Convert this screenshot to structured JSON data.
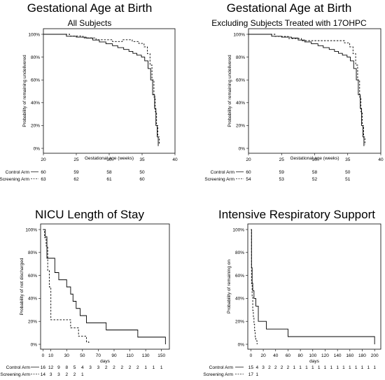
{
  "chart_data": [
    {
      "type": "line",
      "title": "Gestational Age at Birth",
      "subtitle": "All Subjects",
      "xlabel": "Gestational age (weeks)",
      "ylabel": "Probability of remaining undelivered",
      "xlim": [
        20,
        40
      ],
      "ylim": [
        0,
        1
      ],
      "x_ticks": [
        "20",
        "25",
        "30",
        "35",
        "40"
      ],
      "y_ticks": [
        "0%",
        "20%",
        "40%",
        "60%",
        "80%",
        "100%"
      ],
      "series": [
        {
          "name": "Control Arm",
          "style": "solid",
          "x": [
            20.0,
            23.5,
            25.0,
            26.5,
            27.5,
            28.5,
            29.5,
            30.5,
            31.3,
            32.2,
            33.0,
            33.6,
            34.2,
            34.9,
            35.4,
            35.9,
            36.3,
            36.6,
            36.9,
            37.1,
            37.3,
            37.45
          ],
          "y": [
            1.0,
            0.983,
            0.975,
            0.967,
            0.95,
            0.933,
            0.917,
            0.9,
            0.883,
            0.867,
            0.85,
            0.833,
            0.817,
            0.8,
            0.767,
            0.7,
            0.6,
            0.47,
            0.35,
            0.2,
            0.1,
            0.02
          ]
        },
        {
          "name": "Screening Arm",
          "style": "dashed",
          "x": [
            20.0,
            24.0,
            26.0,
            28.0,
            30.5,
            32.0,
            33.5,
            34.5,
            35.3,
            35.8,
            36.2,
            36.5,
            36.8,
            37.0,
            37.2,
            37.4,
            37.6
          ],
          "y": [
            1.0,
            0.984,
            0.968,
            0.952,
            0.937,
            0.952,
            0.937,
            0.92,
            0.89,
            0.83,
            0.73,
            0.6,
            0.45,
            0.32,
            0.2,
            0.1,
            0.03
          ]
        }
      ],
      "risk_table": {
        "times": [
          20,
          25,
          30,
          35
        ],
        "rows": [
          {
            "label": "Control Arm",
            "marker": "—",
            "values": [
              "60",
              "59",
              "58",
              "50"
            ]
          },
          {
            "label": "Screening Arm",
            "marker": "- - -",
            "values": [
              "63",
              "62",
              "61",
              "60"
            ]
          }
        ]
      }
    },
    {
      "type": "line",
      "title": "Gestational Age at Birth",
      "subtitle": "Excluding Subjects Treated with 17OHPC",
      "xlabel": "Gestational age (weeks)",
      "ylabel": "Probability of remaining undelivered",
      "xlim": [
        20,
        40
      ],
      "ylim": [
        0,
        1
      ],
      "x_ticks": [
        "20",
        "25",
        "30",
        "35",
        "40"
      ],
      "y_ticks": [
        "0%",
        "20%",
        "40%",
        "60%",
        "80%",
        "100%"
      ],
      "series": [
        {
          "name": "Control Arm",
          "style": "solid",
          "x": [
            20.0,
            23.5,
            25.0,
            26.5,
            27.5,
            28.5,
            29.5,
            30.5,
            31.3,
            32.2,
            33.0,
            33.6,
            34.2,
            34.9,
            35.4,
            35.9,
            36.3,
            36.6,
            36.9,
            37.1,
            37.3,
            37.45
          ],
          "y": [
            1.0,
            0.983,
            0.975,
            0.967,
            0.95,
            0.933,
            0.917,
            0.9,
            0.883,
            0.867,
            0.85,
            0.833,
            0.817,
            0.8,
            0.767,
            0.7,
            0.6,
            0.47,
            0.35,
            0.2,
            0.1,
            0.02
          ]
        },
        {
          "name": "Screening Arm",
          "style": "dashed",
          "x": [
            20.0,
            24.0,
            26.0,
            28.0,
            30.5,
            32.0,
            33.5,
            34.5,
            35.3,
            35.8,
            36.2,
            36.5,
            36.8,
            37.0,
            37.2,
            37.4,
            37.6
          ],
          "y": [
            1.0,
            0.981,
            0.963,
            0.944,
            0.944,
            0.944,
            0.944,
            0.925,
            0.89,
            0.83,
            0.73,
            0.6,
            0.45,
            0.32,
            0.2,
            0.1,
            0.03
          ]
        }
      ],
      "risk_table": {
        "times": [
          20,
          25,
          30,
          35
        ],
        "rows": [
          {
            "label": "Control Arm",
            "marker": "—",
            "values": [
              "60",
              "59",
              "58",
              "50"
            ]
          },
          {
            "label": "Screening Arm",
            "marker": "- - -",
            "values": [
              "54",
              "53",
              "52",
              "51"
            ]
          }
        ]
      }
    },
    {
      "type": "line",
      "title": "NICU Length of Stay",
      "subtitle": "",
      "xlabel": "days",
      "ylabel": "Probability of not discharged",
      "xlim": [
        0,
        160
      ],
      "ylim": [
        0,
        1
      ],
      "x_ticks": [
        "0",
        "10",
        "30",
        "50",
        "70",
        "90",
        "110",
        "130",
        "150"
      ],
      "y_ticks": [
        "0%",
        "20%",
        "40%",
        "60%",
        "80%",
        "100%"
      ],
      "series": [
        {
          "name": "Control Arm",
          "style": "solid",
          "x": [
            0,
            3,
            5,
            15,
            20,
            30,
            35,
            38,
            42,
            47,
            55,
            80,
            120,
            155
          ],
          "y": [
            1.0,
            0.938,
            0.75,
            0.625,
            0.5625,
            0.5,
            0.4375,
            0.375,
            0.3125,
            0.25,
            0.1875,
            0.125,
            0.0625,
            0.0
          ]
        },
        {
          "name": "Screening Arm",
          "style": "dashed",
          "x": [
            0,
            2,
            4,
            6,
            8,
            10,
            35,
            45,
            55,
            58
          ],
          "y": [
            1.0,
            0.929,
            0.857,
            0.643,
            0.5,
            0.214,
            0.143,
            0.071,
            0.02,
            0.0
          ]
        }
      ],
      "risk_table": {
        "times": [
          0,
          10,
          20,
          30,
          40,
          50,
          60,
          70,
          80,
          90,
          100,
          110,
          120,
          130,
          140,
          150
        ],
        "rows": [
          {
            "label": "Control Arm",
            "marker": "—",
            "values": [
              "16",
              "12",
              "9",
              "8",
              "5",
              "4",
              "3",
              "3",
              "2",
              "2",
              "2",
              "2",
              "2",
              "1",
              "1",
              "1"
            ]
          },
          {
            "label": "Screening Arm",
            "marker": "- - -",
            "values": [
              "14",
              "3",
              "3",
              "2",
              "2",
              "1"
            ]
          }
        ]
      }
    },
    {
      "type": "line",
      "title": "Intensive Respiratory Support",
      "subtitle": "",
      "xlabel": "days",
      "ylabel": "Probability of remaining on",
      "xlim": [
        0,
        210
      ],
      "ylim": [
        0,
        1
      ],
      "x_ticks": [
        "0",
        "20",
        "40",
        "60",
        "80",
        "100",
        "120",
        "140",
        "160",
        "180",
        "200"
      ],
      "y_ticks": [
        "0%",
        "20%",
        "40%",
        "60%",
        "80%",
        "100%"
      ],
      "series": [
        {
          "name": "Control Arm",
          "style": "solid",
          "x": [
            0,
            1,
            2,
            3,
            5,
            8,
            12,
            25,
            60,
            200
          ],
          "y": [
            1.0,
            0.667,
            0.533,
            0.467,
            0.4,
            0.333,
            0.2,
            0.133,
            0.067,
            0.0
          ]
        },
        {
          "name": "Screening Arm",
          "style": "dashed",
          "x": [
            0,
            1,
            2,
            3,
            4,
            5,
            6,
            7,
            8,
            10
          ],
          "y": [
            1.0,
            0.529,
            0.41,
            0.294,
            0.235,
            0.176,
            0.118,
            0.059,
            0.03,
            0.0
          ]
        }
      ],
      "risk_table": {
        "times": [
          0,
          10,
          20,
          30,
          40,
          50,
          60,
          70,
          80,
          90,
          100,
          110,
          120,
          130,
          140,
          150,
          160,
          170,
          180,
          190,
          200
        ],
        "rows": [
          {
            "label": "Control Arm",
            "marker": "—",
            "values": [
              "15",
              "4",
              "3",
              "2",
              "2",
              "2",
              "2",
              "1",
              "1",
              "1",
              "1",
              "1",
              "1",
              "1",
              "1",
              "1",
              "1",
              "1",
              "1",
              "1",
              "1"
            ]
          },
          {
            "label": "Screening Arm",
            "marker": "- - -",
            "values": [
              "17",
              "1"
            ]
          }
        ]
      }
    }
  ]
}
